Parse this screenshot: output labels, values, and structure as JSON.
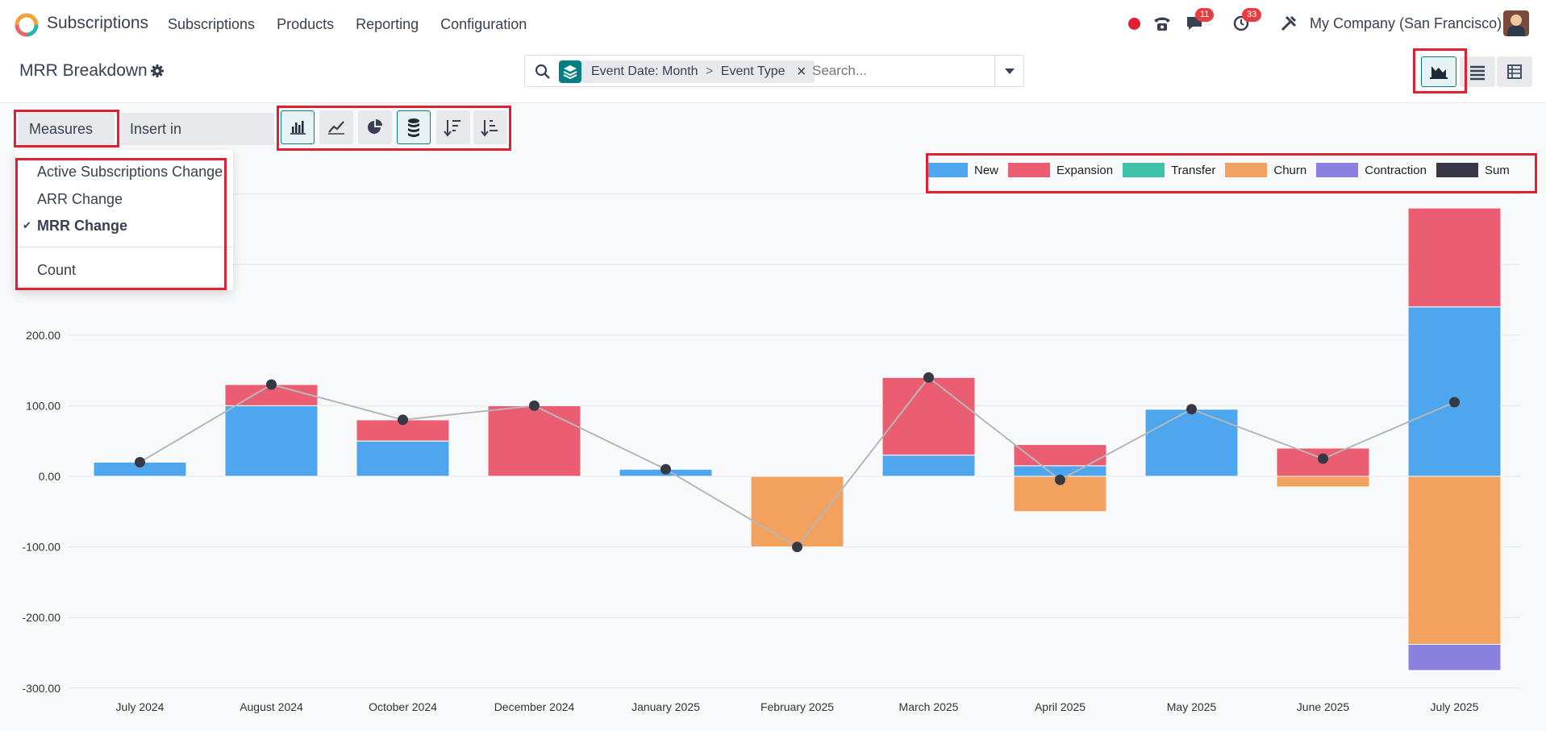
{
  "app": {
    "title": "Subscriptions"
  },
  "menu": [
    "Subscriptions",
    "Products",
    "Reporting",
    "Configuration"
  ],
  "notifications": {
    "messages": "11",
    "activities": "33"
  },
  "company": "My Company (San Francisco)",
  "page": {
    "title": "MRR Breakdown"
  },
  "search": {
    "facet_group": "Event Date: Month",
    "facet_sep": ">",
    "facet_value": "Event Type",
    "placeholder": "Search..."
  },
  "toolbar": {
    "measures_label": "Measures",
    "insert_label": "Insert in Spreadsheet"
  },
  "measures": [
    {
      "label": "Active Subscriptions Change",
      "selected": false
    },
    {
      "label": "ARR Change",
      "selected": false
    },
    {
      "label": "MRR Change",
      "selected": true
    },
    {
      "label": "Count",
      "selected": false
    }
  ],
  "colors": {
    "new": "#4ea6ef",
    "expansion": "#eb5e72",
    "transfer": "#3ec2a9",
    "churn": "#f2a25e",
    "contraction": "#8a80df",
    "sum": "#363945",
    "accent": "#017e84"
  },
  "chart_data": {
    "type": "bar",
    "stacked": true,
    "categories": [
      "July 2024",
      "August 2024",
      "October 2024",
      "December 2024",
      "January 2025",
      "February 2025",
      "March 2025",
      "April 2025",
      "May 2025",
      "June 2025",
      "July 2025"
    ],
    "series": [
      {
        "name": "New",
        "values": [
          20,
          100,
          50,
          0,
          10,
          0,
          30,
          15,
          95,
          0,
          240
        ]
      },
      {
        "name": "Expansion",
        "values": [
          0,
          30,
          30,
          100,
          0,
          0,
          110,
          30,
          0,
          40,
          140
        ]
      },
      {
        "name": "Transfer",
        "values": [
          0,
          0,
          0,
          0,
          0,
          0,
          0,
          0,
          0,
          0,
          0
        ]
      },
      {
        "name": "Churn",
        "values": [
          0,
          0,
          0,
          0,
          0,
          -100,
          0,
          -50,
          0,
          -15,
          -238
        ]
      },
      {
        "name": "Contraction",
        "values": [
          0,
          0,
          0,
          0,
          0,
          0,
          0,
          0,
          0,
          0,
          -37
        ]
      },
      {
        "name": "Sum",
        "values": [
          20,
          130,
          80,
          100,
          10,
          -100,
          140,
          -5,
          95,
          25,
          105
        ]
      }
    ],
    "y_ticks": [
      "200.00",
      "100.00",
      "0.00",
      "-100.00",
      "-200.00",
      "-300.00"
    ],
    "ylim": [
      -300,
      400
    ],
    "legend": "top-right",
    "grid": true
  }
}
